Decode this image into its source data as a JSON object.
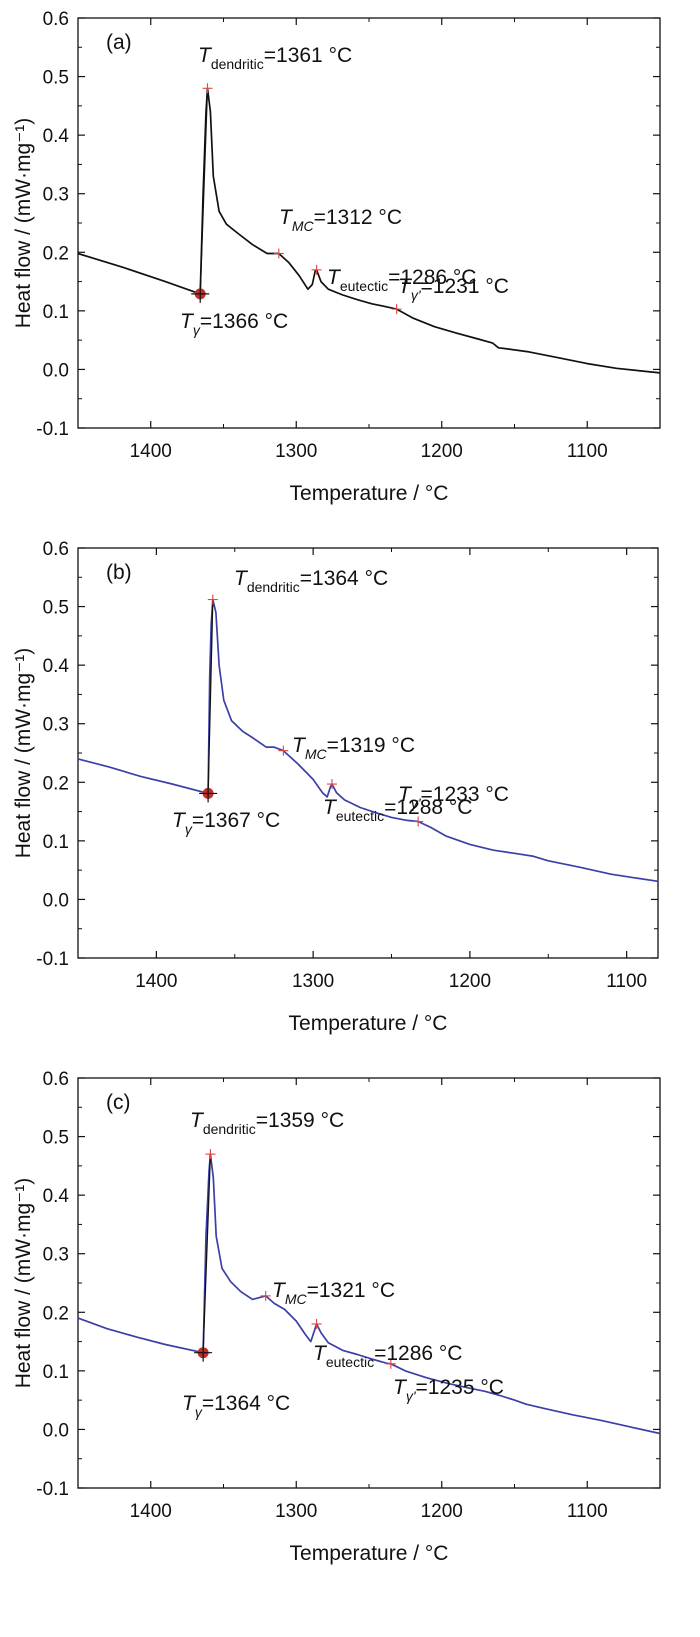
{
  "chart_data": [
    {
      "type": "line",
      "panel_label": "(a)",
      "xlabel": "Temperature / °C",
      "ylabel": "Heat flow / (mW·mg⁻¹)",
      "xlim": [
        1450,
        1050
      ],
      "ylim": [
        -0.1,
        0.6
      ],
      "x_ticks": [
        "1400",
        "1300",
        "1200",
        "1100"
      ],
      "y_ticks": [
        "-0.1",
        "0.0",
        "0.1",
        "0.2",
        "0.3",
        "0.4",
        "0.5",
        "0.6"
      ],
      "line_color": "#111111",
      "series": [
        {
          "points": [
            [
              1450,
              0.198
            ],
            [
              1420,
              0.175
            ],
            [
              1390,
              0.15
            ],
            [
              1366,
              0.129
            ],
            [
              1364,
              0.3
            ],
            [
              1362,
              0.44
            ],
            [
              1361,
              0.48
            ],
            [
              1359,
              0.44
            ],
            [
              1357,
              0.33
            ],
            [
              1353,
              0.27
            ],
            [
              1348,
              0.248
            ],
            [
              1340,
              0.232
            ],
            [
              1330,
              0.213
            ],
            [
              1320,
              0.198
            ],
            [
              1312,
              0.198
            ],
            [
              1305,
              0.182
            ],
            [
              1298,
              0.16
            ],
            [
              1292,
              0.137
            ],
            [
              1289,
              0.145
            ],
            [
              1287,
              0.168
            ],
            [
              1286,
              0.17
            ],
            [
              1283,
              0.15
            ],
            [
              1278,
              0.137
            ],
            [
              1268,
              0.127
            ],
            [
              1258,
              0.119
            ],
            [
              1248,
              0.112
            ],
            [
              1240,
              0.108
            ],
            [
              1231,
              0.103
            ],
            [
              1220,
              0.088
            ],
            [
              1205,
              0.073
            ],
            [
              1190,
              0.062
            ],
            [
              1175,
              0.052
            ],
            [
              1165,
              0.045
            ],
            [
              1161,
              0.037
            ],
            [
              1155,
              0.035
            ],
            [
              1140,
              0.03
            ],
            [
              1120,
              0.02
            ],
            [
              1100,
              0.01
            ],
            [
              1080,
              0.002
            ],
            [
              1065,
              -0.002
            ],
            [
              1050,
              -0.006
            ]
          ]
        }
      ],
      "points_marked": [
        {
          "x": 1361,
          "y": 0.48
        },
        {
          "x": 1312,
          "y": 0.198
        },
        {
          "x": 1286,
          "y": 0.17
        },
        {
          "x": 1231,
          "y": 0.103
        }
      ],
      "onset_marker": {
        "x": 1366,
        "y": 0.129
      },
      "labels": {
        "dendritic": {
          "sym": "T",
          "sub": "dendritic",
          "val": "=1361 °C"
        },
        "mc": {
          "sym": "T",
          "sub": "MC",
          "val": "=1312 °C"
        },
        "eutectic": {
          "sym": "T",
          "sub": "eutectic",
          "val": "=1286 °C"
        },
        "gprime": {
          "sym": "T",
          "sub": "γ'",
          "val": "=1231 °C"
        },
        "gamma": {
          "sym": "T",
          "sub": "γ",
          "val": "=1366 °C"
        }
      }
    },
    {
      "type": "line",
      "panel_label": "(b)",
      "xlabel": "Temperature / °C",
      "ylabel": "Heat flow / (mW·mg⁻¹)",
      "xlim": [
        1450,
        1080
      ],
      "ylim": [
        -0.1,
        0.6
      ],
      "x_ticks": [
        "1400",
        "1300",
        "1200",
        "1100"
      ],
      "y_ticks": [
        "-0.1",
        "0.0",
        "0.1",
        "0.2",
        "0.3",
        "0.4",
        "0.5",
        "0.6"
      ],
      "line_color": "#3b3fa8",
      "series": [
        {
          "points": [
            [
              1450,
              0.24
            ],
            [
              1430,
              0.226
            ],
            [
              1410,
              0.21
            ],
            [
              1390,
              0.197
            ],
            [
              1367,
              0.181
            ],
            [
              1366,
              0.38
            ],
            [
              1365,
              0.47
            ],
            [
              1364,
              0.512
            ],
            [
              1362,
              0.49
            ],
            [
              1360,
              0.4
            ],
            [
              1357,
              0.34
            ],
            [
              1352,
              0.305
            ],
            [
              1345,
              0.287
            ],
            [
              1338,
              0.275
            ],
            [
              1330,
              0.26
            ],
            [
              1325,
              0.26
            ],
            [
              1319,
              0.254
            ],
            [
              1310,
              0.232
            ],
            [
              1300,
              0.205
            ],
            [
              1294,
              0.182
            ],
            [
              1291,
              0.175
            ],
            [
              1289,
              0.192
            ],
            [
              1288,
              0.197
            ],
            [
              1285,
              0.182
            ],
            [
              1280,
              0.17
            ],
            [
              1270,
              0.157
            ],
            [
              1260,
              0.148
            ],
            [
              1250,
              0.14
            ],
            [
              1240,
              0.135
            ],
            [
              1233,
              0.133
            ],
            [
              1225,
              0.123
            ],
            [
              1215,
              0.108
            ],
            [
              1200,
              0.094
            ],
            [
              1185,
              0.084
            ],
            [
              1170,
              0.078
            ],
            [
              1160,
              0.074
            ],
            [
              1150,
              0.066
            ],
            [
              1130,
              0.055
            ],
            [
              1110,
              0.043
            ],
            [
              1095,
              0.037
            ],
            [
              1080,
              0.031
            ]
          ]
        }
      ],
      "points_marked": [
        {
          "x": 1364,
          "y": 0.512
        },
        {
          "x": 1319,
          "y": 0.254
        },
        {
          "x": 1288,
          "y": 0.197
        },
        {
          "x": 1233,
          "y": 0.133
        }
      ],
      "onset_marker": {
        "x": 1367,
        "y": 0.181
      },
      "labels": {
        "dendritic": {
          "sym": "T",
          "sub": "dendritic",
          "val": "=1364 °C"
        },
        "mc": {
          "sym": "T",
          "sub": "MC",
          "val": "=1319 °C"
        },
        "eutectic": {
          "sym": "T",
          "sub": "eutectic",
          "val": "=1288 °C"
        },
        "gprime": {
          "sym": "T",
          "sub": "γ'",
          "val": "=1233 °C"
        },
        "gamma": {
          "sym": "T",
          "sub": "γ",
          "val": "=1367 °C"
        }
      }
    },
    {
      "type": "line",
      "panel_label": "(c)",
      "xlabel": "Temperature / °C",
      "ylabel": "Heat flow / (mW·mg⁻¹)",
      "xlim": [
        1450,
        1050
      ],
      "ylim": [
        -0.1,
        0.6
      ],
      "x_ticks": [
        "1400",
        "1300",
        "1200",
        "1100"
      ],
      "y_ticks": [
        "-0.1",
        "0.0",
        "0.1",
        "0.2",
        "0.3",
        "0.4",
        "0.5",
        "0.6"
      ],
      "line_color": "#3b3fa8",
      "series": [
        {
          "points": [
            [
              1450,
              0.19
            ],
            [
              1430,
              0.172
            ],
            [
              1410,
              0.158
            ],
            [
              1390,
              0.145
            ],
            [
              1364,
              0.131
            ],
            [
              1362,
              0.33
            ],
            [
              1360,
              0.44
            ],
            [
              1359,
              0.47
            ],
            [
              1357,
              0.43
            ],
            [
              1355,
              0.33
            ],
            [
              1351,
              0.275
            ],
            [
              1345,
              0.252
            ],
            [
              1338,
              0.235
            ],
            [
              1330,
              0.222
            ],
            [
              1321,
              0.228
            ],
            [
              1315,
              0.215
            ],
            [
              1308,
              0.205
            ],
            [
              1300,
              0.185
            ],
            [
              1294,
              0.163
            ],
            [
              1290,
              0.15
            ],
            [
              1288,
              0.165
            ],
            [
              1286,
              0.18
            ],
            [
              1283,
              0.165
            ],
            [
              1278,
              0.148
            ],
            [
              1268,
              0.135
            ],
            [
              1258,
              0.128
            ],
            [
              1248,
              0.12
            ],
            [
              1238,
              0.113
            ],
            [
              1235,
              0.112
            ],
            [
              1225,
              0.1
            ],
            [
              1210,
              0.088
            ],
            [
              1195,
              0.078
            ],
            [
              1180,
              0.07
            ],
            [
              1170,
              0.065
            ],
            [
              1160,
              0.058
            ],
            [
              1150,
              0.05
            ],
            [
              1142,
              0.043
            ],
            [
              1130,
              0.036
            ],
            [
              1110,
              0.025
            ],
            [
              1090,
              0.015
            ],
            [
              1070,
              0.004
            ],
            [
              1050,
              -0.007
            ]
          ]
        }
      ],
      "points_marked": [
        {
          "x": 1359,
          "y": 0.47
        },
        {
          "x": 1321,
          "y": 0.228
        },
        {
          "x": 1286,
          "y": 0.18
        },
        {
          "x": 1235,
          "y": 0.112
        }
      ],
      "onset_marker": {
        "x": 1364,
        "y": 0.131
      },
      "labels": {
        "dendritic": {
          "sym": "T",
          "sub": "dendritic",
          "val": "=1359 °C"
        },
        "mc": {
          "sym": "T",
          "sub": "MC",
          "val": "=1321 °C"
        },
        "eutectic": {
          "sym": "T",
          "sub": "eutectic",
          "val": "=1286 °C"
        },
        "gprime": {
          "sym": "T",
          "sub": "γ'",
          "val": "=1235 °C"
        },
        "gamma": {
          "sym": "T",
          "sub": "γ",
          "val": "=1364 °C"
        }
      }
    }
  ]
}
